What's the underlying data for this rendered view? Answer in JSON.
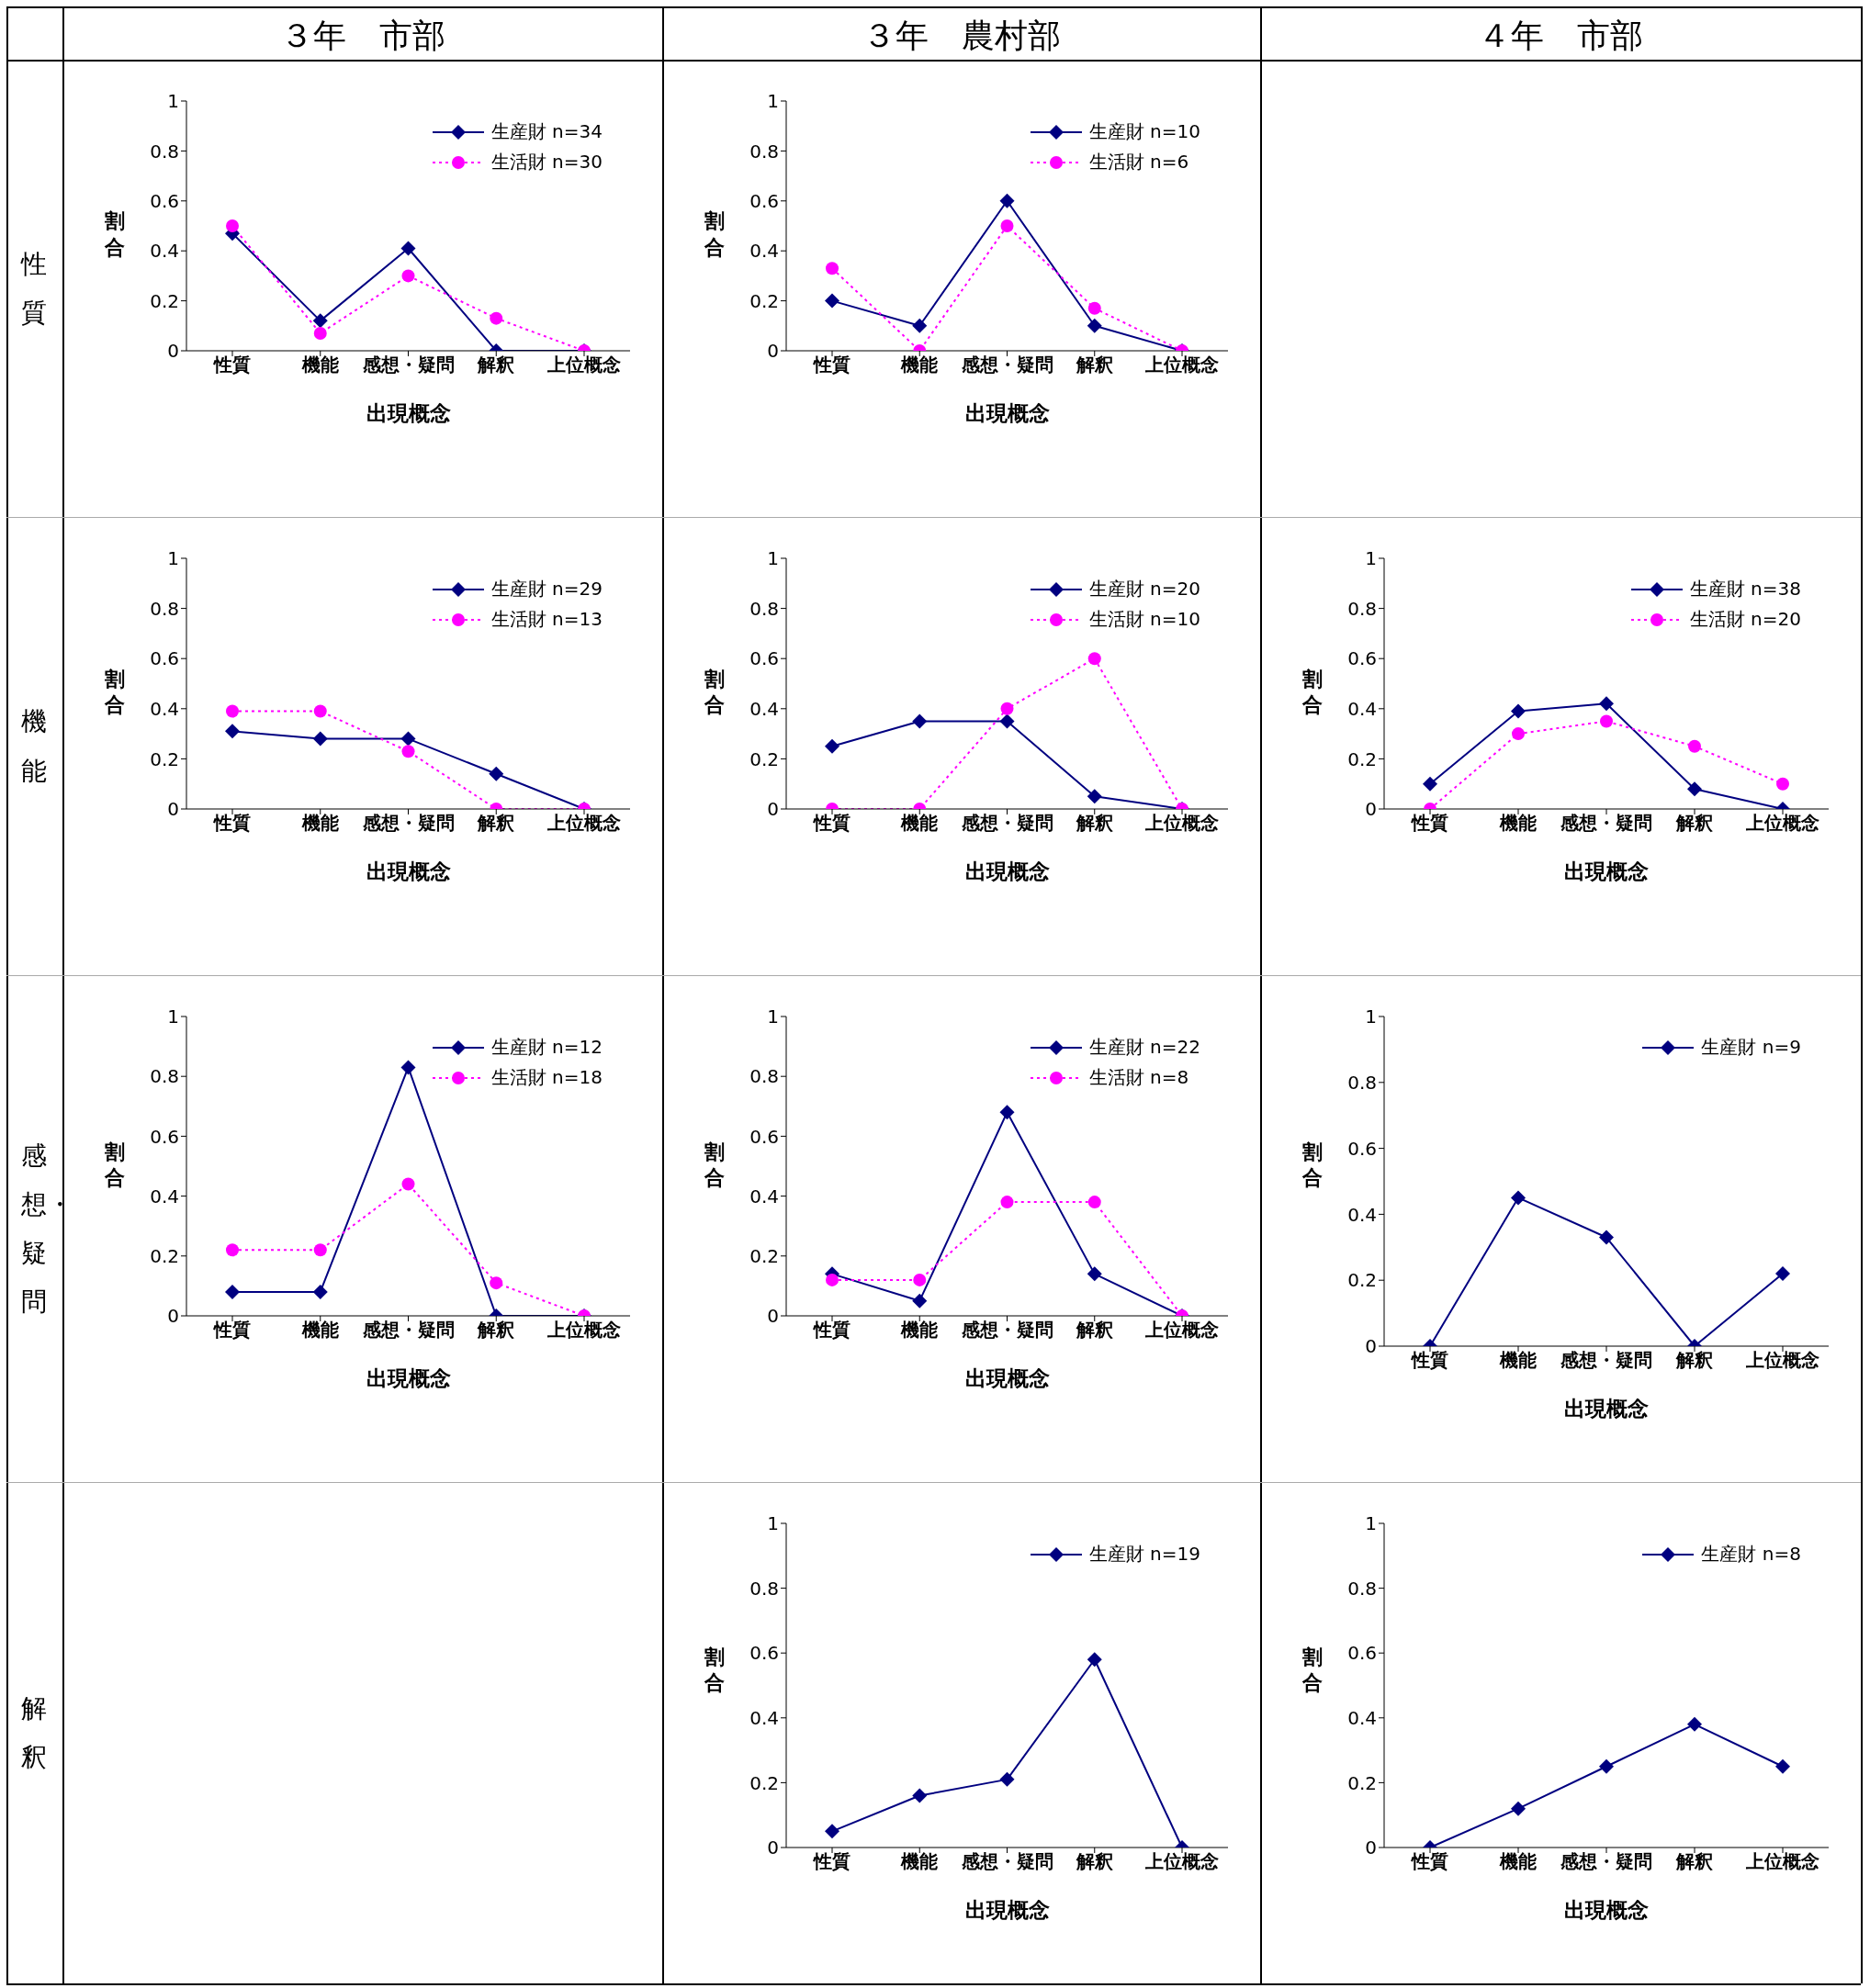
{
  "chart_data": [
    {
      "type": "other",
      "annotations": [
        "３年　市部",
        "３年　農村部",
        "４年　市部",
        "性質",
        "機能",
        "感想・疑問",
        "解釈"
      ]
    },
    {
      "type": "line",
      "categories": [
        "性質",
        "機能",
        "感想・疑問",
        "解釈",
        "上位概念"
      ],
      "xlabel": "出現概念",
      "ylabel": "割合",
      "ylim": [
        0,
        1
      ],
      "yticks": [
        0,
        0.2,
        0.4,
        0.6,
        0.8,
        1
      ],
      "legend": "top right",
      "series": [
        {
          "name": "生産財 n=34",
          "color": "#000080",
          "marker": "diamond",
          "line_style": "solid",
          "values": [
            0.47,
            0.12,
            0.41,
            0,
            0
          ]
        },
        {
          "name": "生活財 n=30",
          "color": "#ff00ff",
          "marker": "circle",
          "line_style": "dotted",
          "values": [
            0.5,
            0.07,
            0.3,
            0.13,
            0
          ]
        }
      ]
    },
    {
      "type": "line",
      "categories": [
        "性質",
        "機能",
        "感想・疑問",
        "解釈",
        "上位概念"
      ],
      "xlabel": "出現概念",
      "ylabel": "割合",
      "ylim": [
        0,
        1
      ],
      "yticks": [
        0,
        0.2,
        0.4,
        0.6,
        0.8,
        1
      ],
      "legend": "top right",
      "series": [
        {
          "name": "生産財 n=10",
          "color": "#000080",
          "marker": "diamond",
          "line_style": "solid",
          "values": [
            0.2,
            0.1,
            0.6,
            0.1,
            0
          ]
        },
        {
          "name": "生活財 n=6",
          "color": "#ff00ff",
          "marker": "circle",
          "line_style": "dotted",
          "values": [
            0.33,
            0,
            0.5,
            0.17,
            0
          ]
        }
      ]
    },
    {
      "type": "line",
      "categories": [
        "性質",
        "機能",
        "感想・疑問",
        "解釈",
        "上位概念"
      ],
      "xlabel": "出現概念",
      "ylabel": "割合",
      "ylim": [
        0,
        1
      ],
      "yticks": [
        0,
        0.2,
        0.4,
        0.6,
        0.8,
        1
      ],
      "legend": "top right",
      "series": [
        {
          "name": "生産財 n=29",
          "color": "#000080",
          "marker": "diamond",
          "line_style": "solid",
          "values": [
            0.31,
            0.28,
            0.28,
            0.14,
            0
          ]
        },
        {
          "name": "生活財 n=13",
          "color": "#ff00ff",
          "marker": "circle",
          "line_style": "dotted",
          "values": [
            0.39,
            0.39,
            0.23,
            0,
            0
          ]
        }
      ]
    },
    {
      "type": "line",
      "categories": [
        "性質",
        "機能",
        "感想・疑問",
        "解釈",
        "上位概念"
      ],
      "xlabel": "出現概念",
      "ylabel": "割合",
      "ylim": [
        0,
        1
      ],
      "yticks": [
        0,
        0.2,
        0.4,
        0.6,
        0.8,
        1
      ],
      "legend": "top right",
      "series": [
        {
          "name": "生産財 n=20",
          "color": "#000080",
          "marker": "diamond",
          "line_style": "solid",
          "values": [
            0.25,
            0.35,
            0.35,
            0.05,
            0
          ]
        },
        {
          "name": "生活財 n=10",
          "color": "#ff00ff",
          "marker": "circle",
          "line_style": "dotted",
          "values": [
            0,
            0,
            0.4,
            0.6,
            0
          ]
        }
      ]
    },
    {
      "type": "line",
      "categories": [
        "性質",
        "機能",
        "感想・疑問",
        "解釈",
        "上位概念"
      ],
      "xlabel": "出現概念",
      "ylabel": "割合",
      "ylim": [
        0,
        1
      ],
      "yticks": [
        0,
        0.2,
        0.4,
        0.6,
        0.8,
        1
      ],
      "legend": "top right",
      "series": [
        {
          "name": "生産財 n=38",
          "color": "#000080",
          "marker": "diamond",
          "line_style": "solid",
          "values": [
            0.1,
            0.39,
            0.42,
            0.08,
            0
          ]
        },
        {
          "name": "生活財 n=20",
          "color": "#ff00ff",
          "marker": "circle",
          "line_style": "dotted",
          "values": [
            0,
            0.3,
            0.35,
            0.25,
            0.1
          ]
        }
      ]
    },
    {
      "type": "line",
      "categories": [
        "性質",
        "機能",
        "感想・疑問",
        "解釈",
        "上位概念"
      ],
      "xlabel": "出現概念",
      "ylabel": "割合",
      "ylim": [
        0,
        1
      ],
      "yticks": [
        0,
        0.2,
        0.4,
        0.6,
        0.8,
        1
      ],
      "legend": "top right",
      "series": [
        {
          "name": "生産財 n=12",
          "color": "#000080",
          "marker": "diamond",
          "line_style": "solid",
          "values": [
            0.08,
            0.08,
            0.83,
            0,
            0
          ]
        },
        {
          "name": "生活財 n=18",
          "color": "#ff00ff",
          "marker": "circle",
          "line_style": "dotted",
          "values": [
            0.22,
            0.22,
            0.44,
            0.11,
            0
          ]
        }
      ]
    },
    {
      "type": "line",
      "categories": [
        "性質",
        "機能",
        "感想・疑問",
        "解釈",
        "上位概念"
      ],
      "xlabel": "出現概念",
      "ylabel": "割合",
      "ylim": [
        0,
        1
      ],
      "yticks": [
        0,
        0.2,
        0.4,
        0.6,
        0.8,
        1
      ],
      "legend": "top right",
      "series": [
        {
          "name": "生産財 n=22",
          "color": "#000080",
          "marker": "diamond",
          "line_style": "solid",
          "values": [
            0.14,
            0.05,
            0.68,
            0.14,
            0
          ]
        },
        {
          "name": "生活財 n=8",
          "color": "#ff00ff",
          "marker": "circle",
          "line_style": "dotted",
          "values": [
            0.12,
            0.12,
            0.38,
            0.38,
            0
          ]
        }
      ]
    },
    {
      "type": "line",
      "categories": [
        "性質",
        "機能",
        "感想・疑問",
        "解釈",
        "上位概念"
      ],
      "xlabel": "出現概念",
      "ylabel": "割合",
      "ylim": [
        0,
        1
      ],
      "yticks": [
        0,
        0.2,
        0.4,
        0.6,
        0.8,
        1
      ],
      "legend": "top right",
      "series": [
        {
          "name": "生産財 n=9",
          "color": "#000080",
          "marker": "diamond",
          "line_style": "solid",
          "values": [
            0,
            0.45,
            0.33,
            0,
            0.22
          ]
        }
      ]
    },
    {
      "type": "line",
      "categories": [
        "性質",
        "機能",
        "感想・疑問",
        "解釈",
        "上位概念"
      ],
      "xlabel": "出現概念",
      "ylabel": "割合",
      "ylim": [
        0,
        1
      ],
      "yticks": [
        0,
        0.2,
        0.4,
        0.6,
        0.8,
        1
      ],
      "legend": "top right",
      "series": [
        {
          "name": "生産財 n=19",
          "color": "#000080",
          "marker": "diamond",
          "line_style": "solid",
          "values": [
            0.05,
            0.16,
            0.21,
            0.58,
            0
          ]
        }
      ]
    },
    {
      "type": "line",
      "categories": [
        "性質",
        "機能",
        "感想・疑問",
        "解釈",
        "上位概念"
      ],
      "xlabel": "出現概念",
      "ylabel": "割合",
      "ylim": [
        0,
        1
      ],
      "yticks": [
        0,
        0.2,
        0.4,
        0.6,
        0.8,
        1
      ],
      "legend": "top right",
      "series": [
        {
          "name": "生産財 n=8",
          "color": "#000080",
          "marker": "diamond",
          "line_style": "solid",
          "values": [
            0,
            0.12,
            0.25,
            0.38,
            0.25
          ]
        }
      ]
    }
  ]
}
